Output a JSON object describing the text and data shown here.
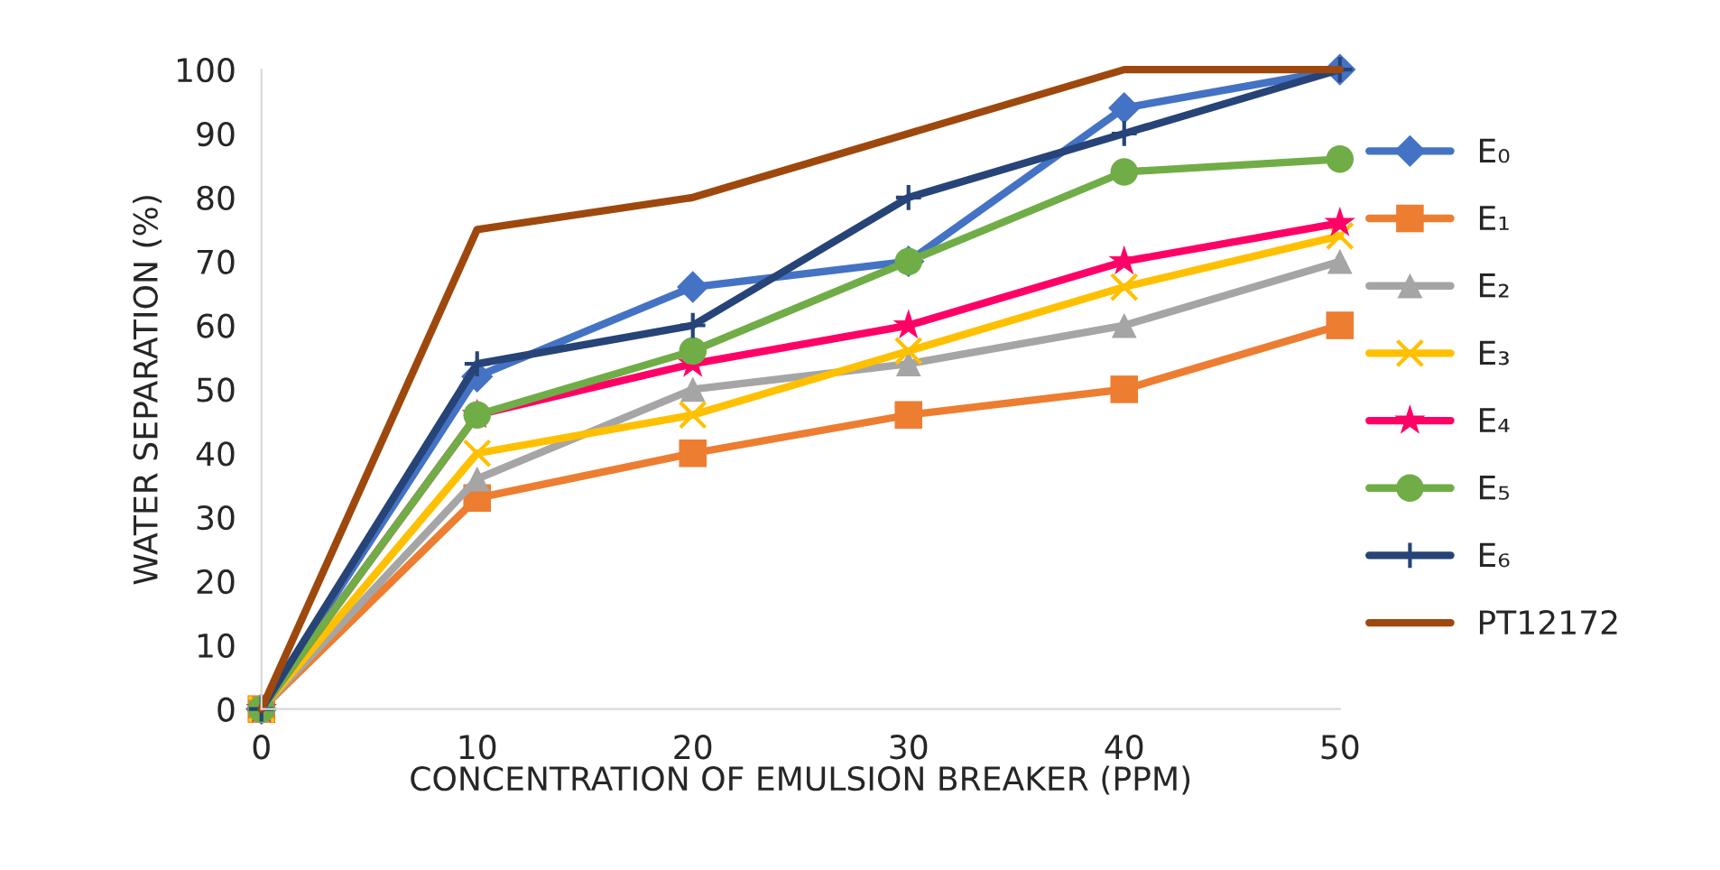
{
  "chart_data": {
    "type": "line",
    "xlabel": "CONCENTRATION OF EMULSION BREAKER (PPM)",
    "ylabel": "WATER SEPARATION (%)",
    "x": [
      0,
      10,
      20,
      30,
      40,
      50
    ],
    "xlim": [
      0,
      50
    ],
    "xticks": [
      0,
      10,
      20,
      30,
      40,
      50
    ],
    "ylim": [
      0,
      100
    ],
    "yticks": [
      0,
      10,
      20,
      30,
      40,
      50,
      60,
      70,
      80,
      90,
      100
    ],
    "grid": false,
    "legend": "right",
    "series": [
      {
        "name": "E₀",
        "color": "#4472c4",
        "marker": "diamond",
        "values": [
          0,
          52,
          66,
          70,
          94,
          100
        ]
      },
      {
        "name": "E₁",
        "color": "#ed7d31",
        "marker": "square",
        "values": [
          0,
          33,
          40,
          46,
          50,
          60
        ]
      },
      {
        "name": "E₂",
        "color": "#a5a5a5",
        "marker": "triangle",
        "values": [
          0,
          36,
          50,
          54,
          60,
          70
        ]
      },
      {
        "name": "E₃",
        "color": "#ffc000",
        "marker": "cross",
        "values": [
          0,
          40,
          46,
          56,
          66,
          74
        ]
      },
      {
        "name": "E₄",
        "color": "#ff0066",
        "marker": "star",
        "values": [
          0,
          46,
          54,
          60,
          70,
          76
        ]
      },
      {
        "name": "E₅",
        "color": "#70ad47",
        "marker": "circle",
        "values": [
          0,
          46,
          56,
          70,
          84,
          86
        ]
      },
      {
        "name": "E₆",
        "color": "#264478",
        "marker": "plus",
        "values": [
          0,
          54,
          60,
          80,
          90,
          100
        ]
      },
      {
        "name": "PT12172",
        "color": "#9e480e",
        "marker": "none",
        "values": [
          0,
          75,
          80,
          90,
          100,
          100
        ]
      }
    ]
  }
}
